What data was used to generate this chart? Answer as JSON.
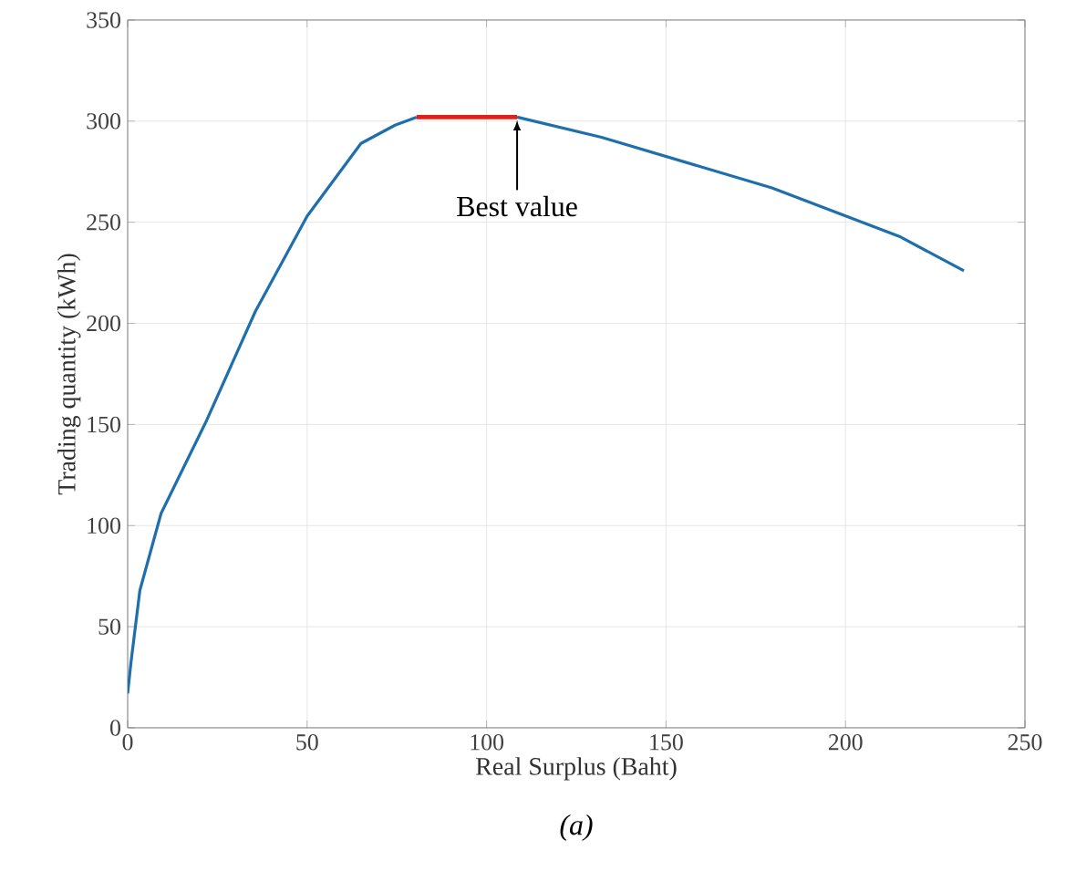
{
  "chart_data": {
    "type": "line",
    "xlabel": "Real Surplus (Baht)",
    "ylabel": "Trading quantity (kWh)",
    "xlim": [
      0,
      250
    ],
    "ylim": [
      0,
      350
    ],
    "xticks": [
      0,
      50,
      100,
      150,
      200,
      250
    ],
    "yticks": [
      0,
      50,
      100,
      150,
      200,
      250,
      300,
      350
    ],
    "grid": true,
    "line_style": "solid",
    "series": [
      {
        "color": "#1f6fad",
        "x": [
          0,
          0.9,
          3.4,
          9.3,
          22,
          35.6,
          50,
          65,
          74.5,
          80.5,
          94,
          108.5,
          132,
          179.5,
          215,
          233
        ],
        "values": [
          17,
          32,
          68,
          106,
          152,
          206,
          253,
          289,
          298,
          302,
          null,
          302,
          292,
          267,
          243,
          226
        ]
      },
      {
        "color": "#e0201b",
        "x": [
          80.5,
          108.5
        ],
        "values": [
          302,
          302
        ]
      }
    ],
    "annotations": [
      {
        "text": "Best value",
        "x": 108.5,
        "y": 302
      },
      "(a)"
    ]
  }
}
